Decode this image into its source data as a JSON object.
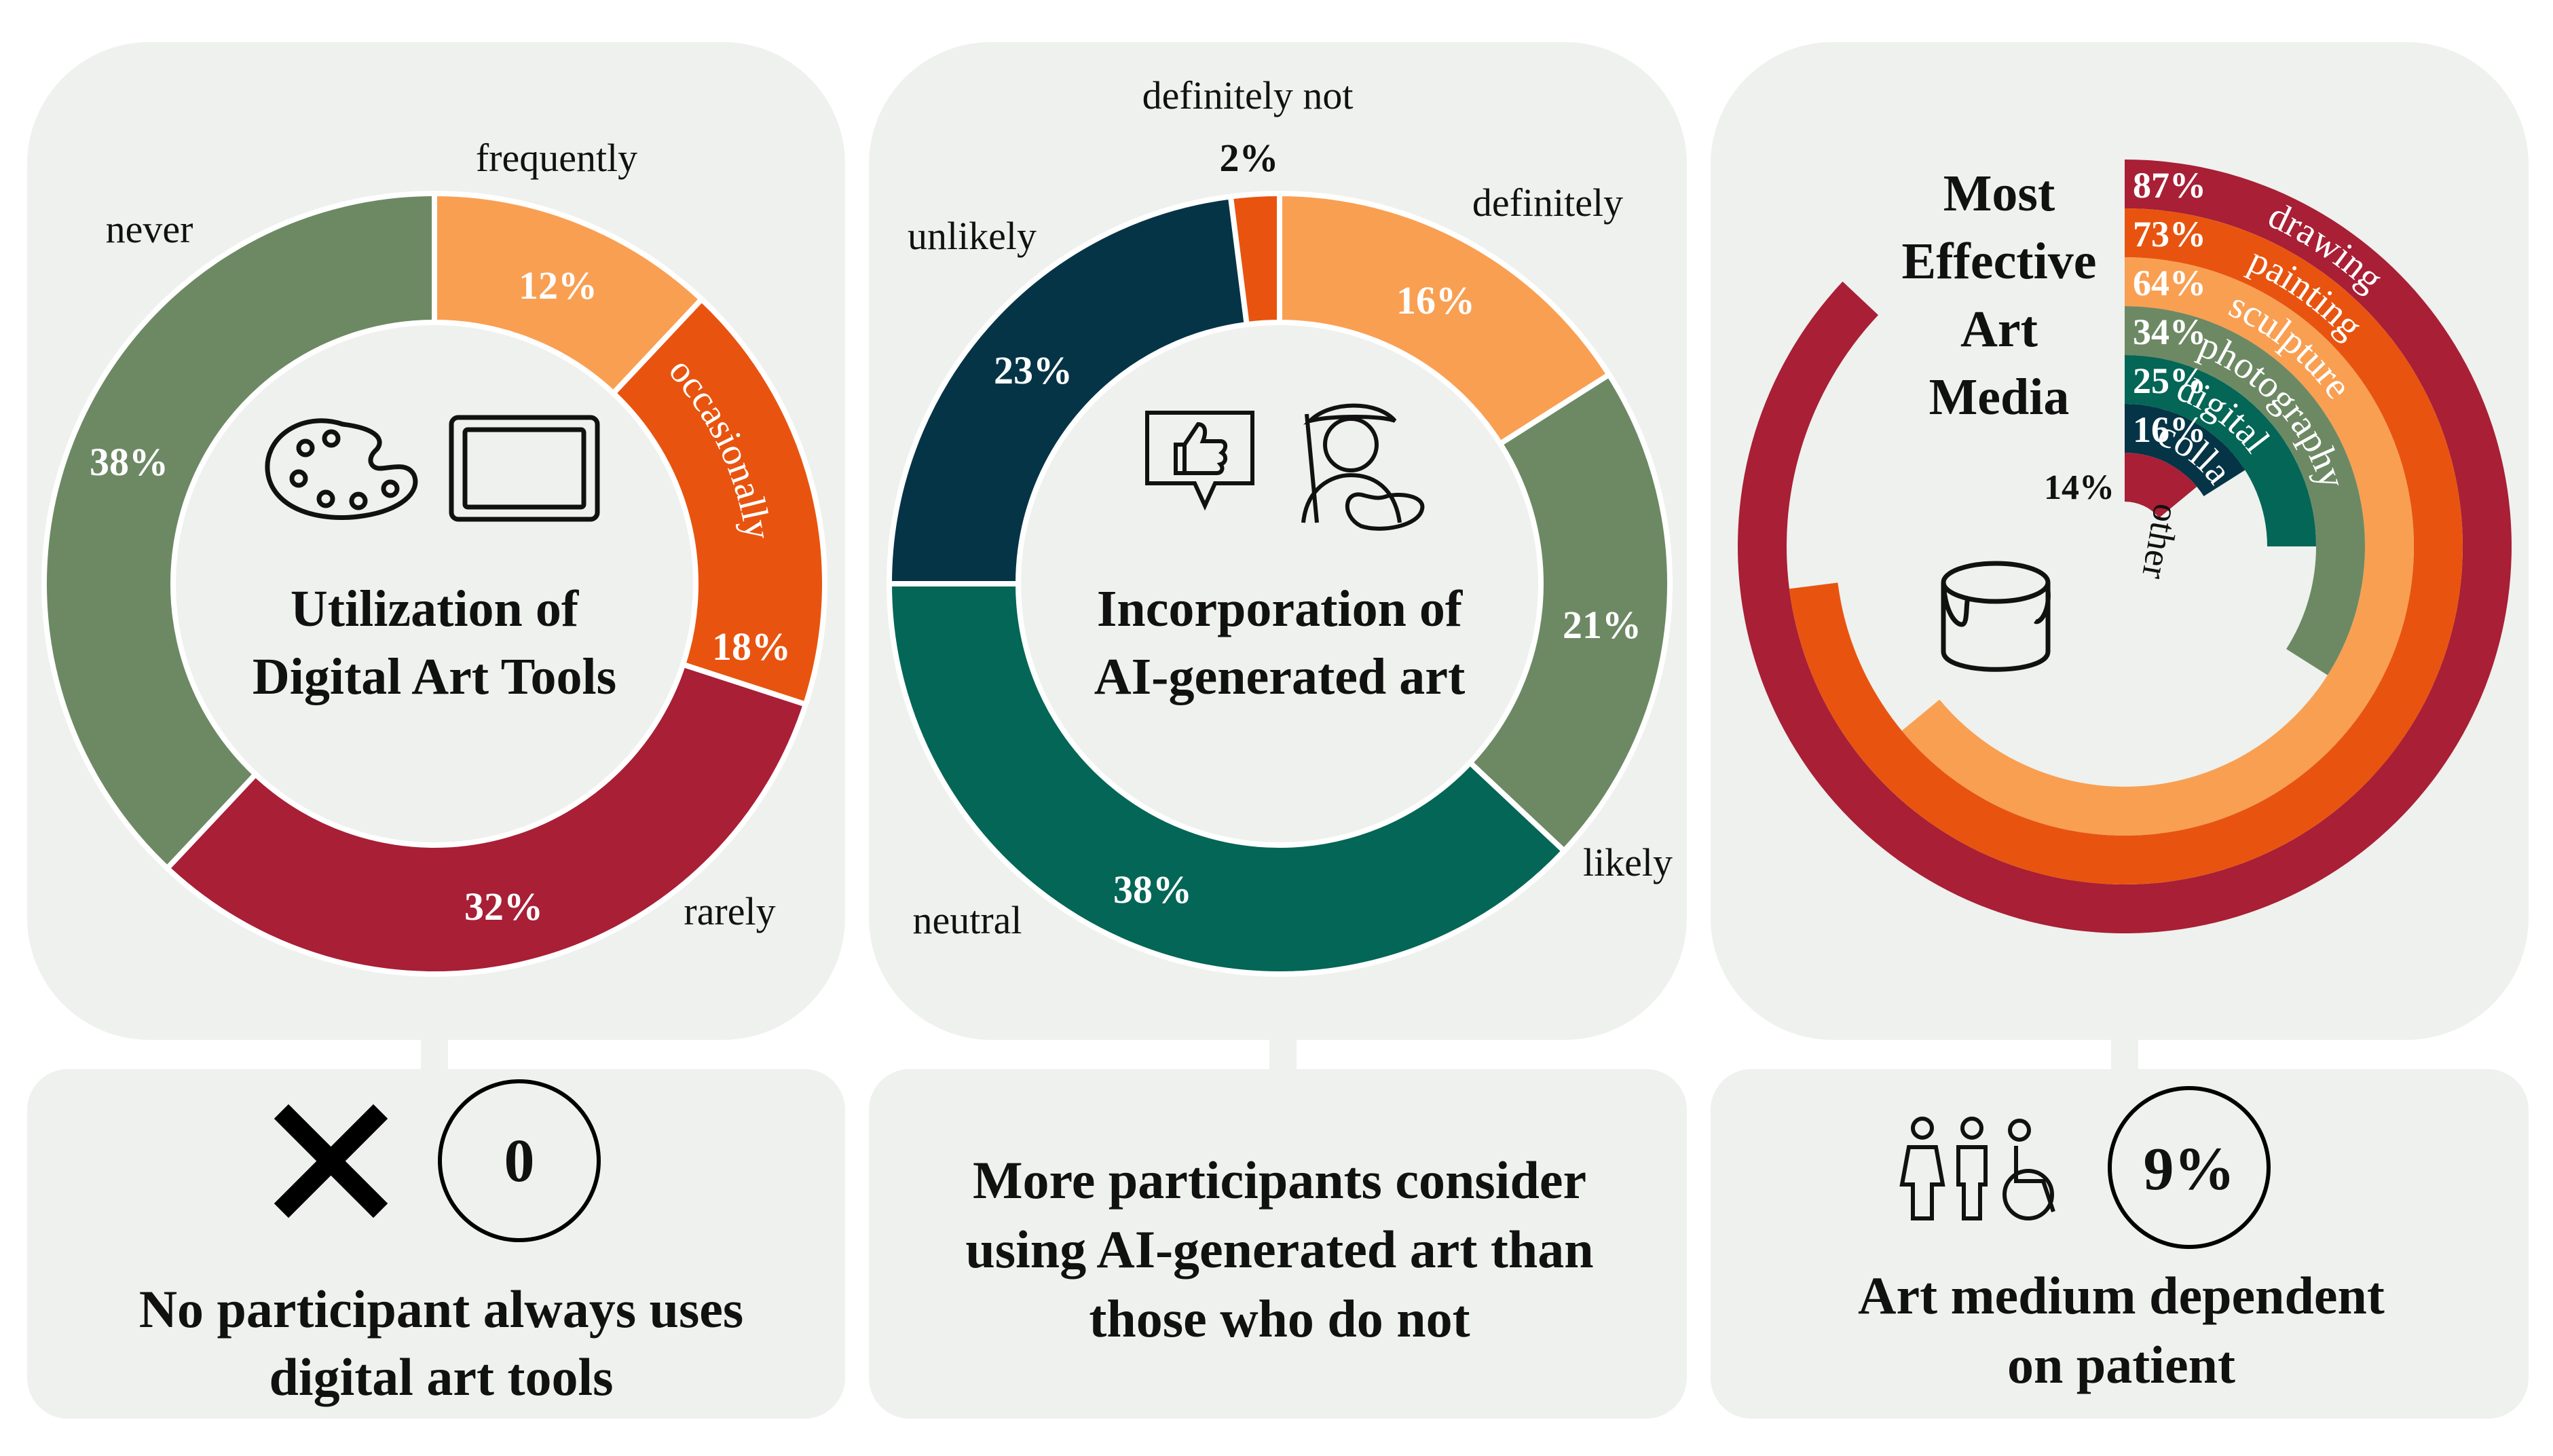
{
  "colors": {
    "panel_bg": "#eef1ed",
    "light_orange": "#f99f52",
    "dark_orange": "#e8540f",
    "crimson": "#a81f36",
    "sage": "#6d8964",
    "navy": "#053446",
    "teal": "#036656",
    "text": "#111111",
    "white": "#ffffff"
  },
  "chart_data": [
    {
      "type": "pie",
      "variant": "donut",
      "title": "Utilization of Digital Art Tools",
      "title_lines": [
        "Utilization of",
        "Digital Art Tools"
      ],
      "icons": [
        "palette-icon",
        "tablet-icon"
      ],
      "slices": [
        {
          "label": "frequently",
          "value": 12,
          "display": "12%",
          "color": "#f99f52"
        },
        {
          "label": "occasionally",
          "value": 18,
          "display": "18%",
          "color": "#e8540f"
        },
        {
          "label": "rarely",
          "value": 32,
          "display": "32%",
          "color": "#a81f36"
        },
        {
          "label": "never",
          "value": 38,
          "display": "38%",
          "color": "#6d8964"
        }
      ]
    },
    {
      "type": "pie",
      "variant": "donut",
      "title": "Incorporation of AI-generated art",
      "title_lines": [
        "Incorporation of",
        "AI-generated art"
      ],
      "icons": [
        "thumbs-up-icon",
        "artist-icon"
      ],
      "slices": [
        {
          "label": "definitely",
          "value": 16,
          "display": "16%",
          "color": "#f99f52"
        },
        {
          "label": "likely",
          "value": 21,
          "display": "21%",
          "color": "#6d8964"
        },
        {
          "label": "neutral",
          "value": 38,
          "display": "38%",
          "color": "#036656"
        },
        {
          "label": "unlikely",
          "value": 23,
          "display": "23%",
          "color": "#053446"
        },
        {
          "label": "definitely not",
          "value": 2,
          "display": "2%",
          "color": "#e8540f"
        }
      ]
    },
    {
      "type": "bar",
      "variant": "radial",
      "title": "Most Effective Art Media",
      "title_lines": [
        "Most",
        "Effective",
        "Art",
        "Media"
      ],
      "icons": [
        "paint-bucket-icon"
      ],
      "max_value": 100,
      "series": [
        {
          "name": "drawing",
          "value": 87,
          "display": "87%",
          "color": "#a81f36"
        },
        {
          "name": "painting",
          "value": 73,
          "display": "73%",
          "color": "#e8540f"
        },
        {
          "name": "sculpture",
          "value": 64,
          "display": "64%",
          "color": "#f99f52"
        },
        {
          "name": "photography",
          "value": 34,
          "display": "34%",
          "color": "#6d8964"
        },
        {
          "name": "digital",
          "value": 25,
          "display": "25%",
          "color": "#036656"
        },
        {
          "name": "collage",
          "value": 16,
          "display": "16%",
          "color": "#053446"
        },
        {
          "name": "other",
          "value": 14,
          "display": "14%",
          "color": "#a81f36"
        }
      ]
    }
  ],
  "callouts": [
    {
      "badge": "0",
      "lines": [
        "No participant always uses",
        "digital art tools"
      ],
      "icons": [
        "cross-icon"
      ]
    },
    {
      "lines": [
        "More participants consider",
        "using AI-generated art than",
        "those who do not"
      ]
    },
    {
      "badge": "9%",
      "lines": [
        "Art medium dependent",
        "on patient"
      ],
      "icons": [
        "people-icon"
      ]
    }
  ]
}
